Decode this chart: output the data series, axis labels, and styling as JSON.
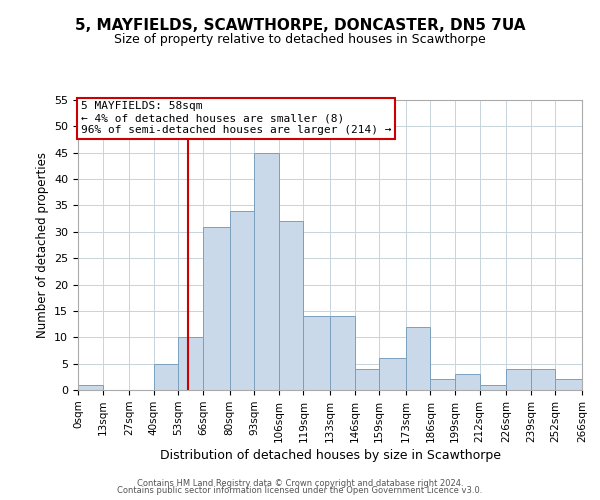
{
  "title": "5, MAYFIELDS, SCAWTHORPE, DONCASTER, DN5 7UA",
  "subtitle": "Size of property relative to detached houses in Scawthorpe",
  "xlabel": "Distribution of detached houses by size in Scawthorpe",
  "ylabel": "Number of detached properties",
  "bin_edges": [
    0,
    13,
    27,
    40,
    53,
    66,
    80,
    93,
    106,
    119,
    133,
    146,
    159,
    173,
    186,
    199,
    212,
    226,
    239,
    252,
    266
  ],
  "bin_counts": [
    1,
    0,
    0,
    5,
    10,
    31,
    34,
    45,
    32,
    14,
    14,
    4,
    6,
    12,
    2,
    3,
    1,
    4,
    4,
    2
  ],
  "tick_labels": [
    "0sqm",
    "13sqm",
    "27sqm",
    "40sqm",
    "53sqm",
    "66sqm",
    "80sqm",
    "93sqm",
    "106sqm",
    "119sqm",
    "133sqm",
    "146sqm",
    "159sqm",
    "173sqm",
    "186sqm",
    "199sqm",
    "212sqm",
    "226sqm",
    "239sqm",
    "252sqm",
    "266sqm"
  ],
  "bar_color": "#c9d9ea",
  "bar_edge_color": "#7aa0be",
  "vline_x": 58,
  "vline_color": "#cc0000",
  "annotation_text": "5 MAYFIELDS: 58sqm\n← 4% of detached houses are smaller (8)\n96% of semi-detached houses are larger (214) →",
  "annotation_box_color": "#ffffff",
  "annotation_box_edge_color": "#cc0000",
  "ylim": [
    0,
    55
  ],
  "yticks": [
    0,
    5,
    10,
    15,
    20,
    25,
    30,
    35,
    40,
    45,
    50,
    55
  ],
  "background_color": "#ffffff",
  "grid_color": "#c8d4dc",
  "footer_line1": "Contains HM Land Registry data © Crown copyright and database right 2024.",
  "footer_line2": "Contains public sector information licensed under the Open Government Licence v3.0."
}
